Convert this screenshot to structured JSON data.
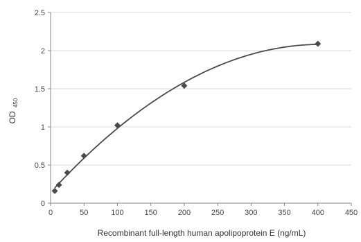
{
  "chart_data": {
    "type": "scatter",
    "title": "",
    "xlabel": "Recombinant full-length human apolipoprotein E (ng/mL)",
    "ylabel": {
      "main": "OD",
      "subscript": "450"
    },
    "xlim": [
      0,
      450
    ],
    "ylim": [
      0,
      2.5
    ],
    "x_ticks": [
      0,
      50,
      100,
      150,
      200,
      250,
      300,
      350,
      400,
      450
    ],
    "y_ticks": [
      0,
      0.5,
      1,
      1.5,
      2,
      2.5
    ],
    "x_tick_labels": [
      "0",
      "50",
      "100",
      "150",
      "200",
      "250",
      "300",
      "350",
      "400",
      "450"
    ],
    "y_tick_labels": [
      "0",
      "0.5",
      "1",
      "1.5",
      "2",
      "2.5"
    ],
    "grid": "horizontal",
    "legend": "none",
    "marker": "diamond",
    "colors": {
      "points": "#4a4a4a",
      "curve": "#4a4a4a",
      "grid": "#d9d9d9",
      "axis": "#868686"
    },
    "series": [
      {
        "points": [
          {
            "x": 6.25,
            "y": 0.16
          },
          {
            "x": 12.5,
            "y": 0.24
          },
          {
            "x": 25,
            "y": 0.4
          },
          {
            "x": 50,
            "y": 0.62
          },
          {
            "x": 100,
            "y": 1.02
          },
          {
            "x": 200,
            "y": 1.54
          },
          {
            "x": 400,
            "y": 2.09
          }
        ]
      }
    ]
  }
}
